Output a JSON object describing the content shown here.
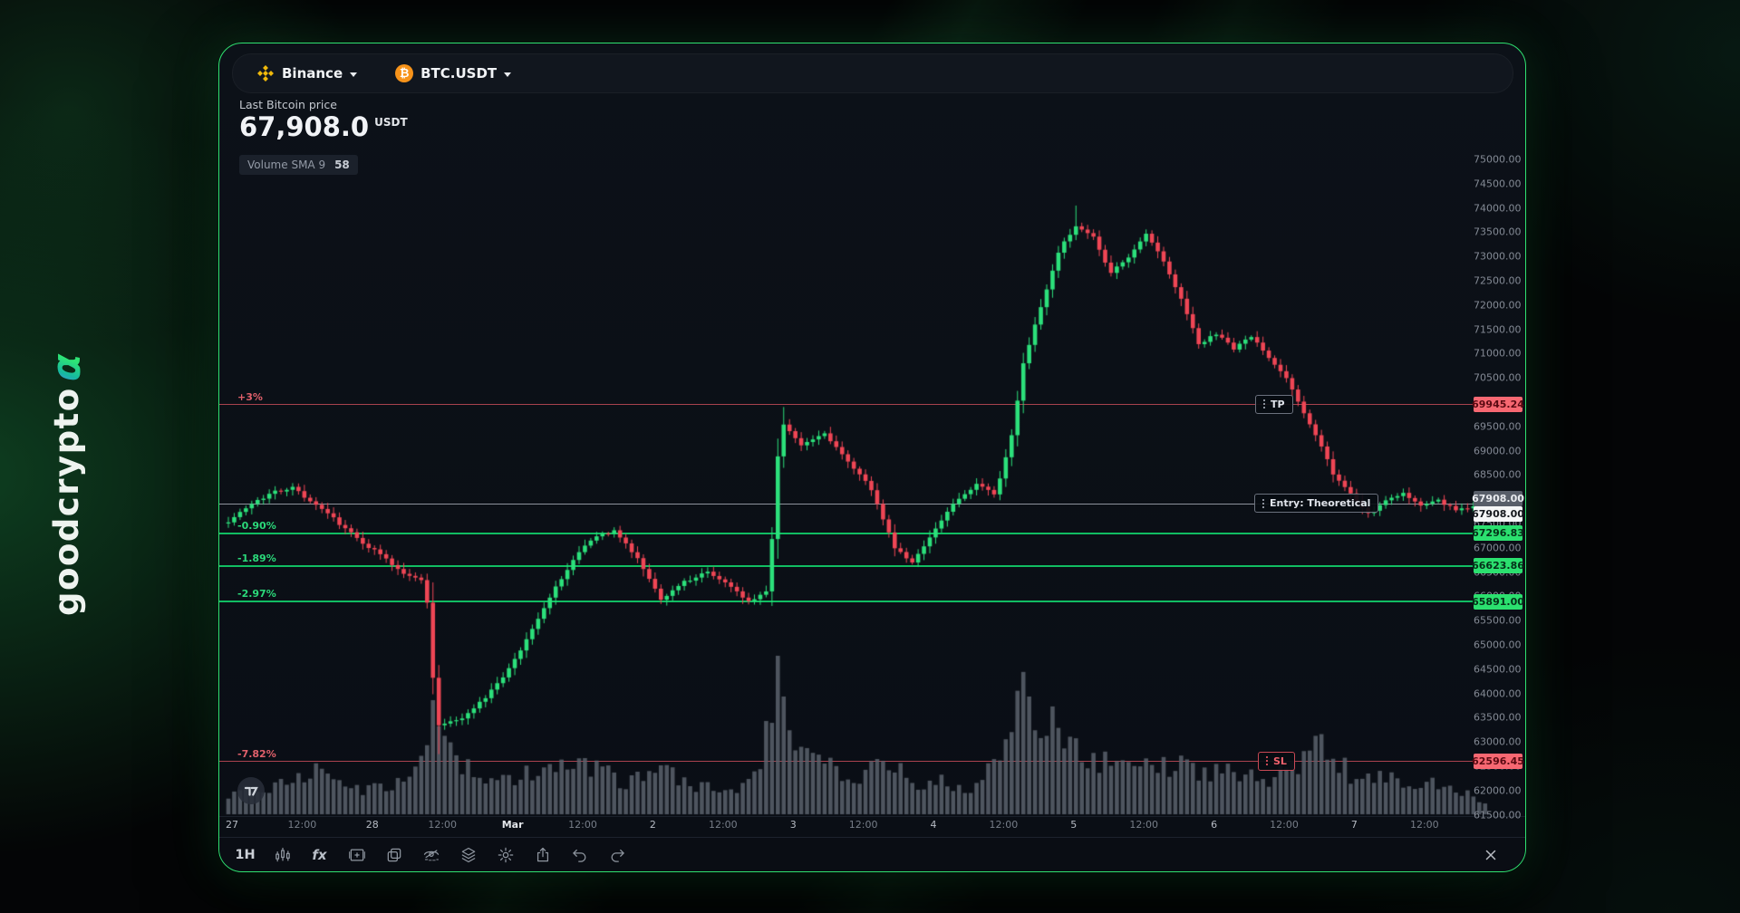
{
  "page": {
    "brand": "goodcrypto",
    "brand_alpha": "α"
  },
  "topbar": {
    "exchange": "Binance",
    "pair": "BTC.USDT",
    "btc_glyph": "₿"
  },
  "price_header": {
    "label": "Last Bitcoin price",
    "value": "67,908.0",
    "unit": "USDT"
  },
  "indicator_badge": {
    "label": "Volume SMA 9",
    "value": "58"
  },
  "last_price_badge": "67908.00",
  "levels": [
    {
      "id": "tp",
      "kind": "take-profit",
      "pct": "+3%",
      "price": 69945.24,
      "price_label": "69945.24",
      "flag": "TP",
      "color": "red"
    },
    {
      "id": "entry",
      "kind": "entry",
      "pct": "",
      "price": 67908.0,
      "price_label": "67908.00",
      "flag": "Entry: Theoretical",
      "color": "gray"
    },
    {
      "id": "l1",
      "kind": "ladder",
      "pct": "-0.90%",
      "price": 67296.83,
      "price_label": "67296.83",
      "flag": "",
      "color": "green"
    },
    {
      "id": "l2",
      "kind": "ladder",
      "pct": "-1.89%",
      "price": 66623.86,
      "price_label": "66623.86",
      "flag": "",
      "color": "green"
    },
    {
      "id": "l3",
      "kind": "ladder",
      "pct": "-2.97%",
      "price": 65891.0,
      "price_label": "65891.00",
      "flag": "",
      "color": "green"
    },
    {
      "id": "sl",
      "kind": "stop-loss",
      "pct": "-7.82%",
      "price": 62596.45,
      "price_label": "62596.45",
      "flag": "SL",
      "color": "red"
    }
  ],
  "price_axis": {
    "labels": [
      "75000.00",
      "74500.00",
      "74000.00",
      "73500.00",
      "73000.00",
      "72500.00",
      "72000.00",
      "71500.00",
      "71000.00",
      "70500.00",
      "70000.00",
      "69500.00",
      "69000.00",
      "68500.00",
      "68000.00",
      "67500.00",
      "67000.00",
      "66500.00",
      "66000.00",
      "65500.00",
      "65000.00",
      "64500.00",
      "64000.00",
      "63500.00",
      "63000.00",
      "62500.00",
      "62000.00",
      "61500.00"
    ]
  },
  "time_axis": [
    {
      "label": "27",
      "type": "day"
    },
    {
      "label": "12:00",
      "type": "hour"
    },
    {
      "label": "28",
      "type": "day"
    },
    {
      "label": "12:00",
      "type": "hour"
    },
    {
      "label": "Mar",
      "type": "month"
    },
    {
      "label": "12:00",
      "type": "hour"
    },
    {
      "label": "2",
      "type": "day"
    },
    {
      "label": "12:00",
      "type": "hour"
    },
    {
      "label": "3",
      "type": "day"
    },
    {
      "label": "12:00",
      "type": "hour"
    },
    {
      "label": "4",
      "type": "day"
    },
    {
      "label": "12:00",
      "type": "hour"
    },
    {
      "label": "5",
      "type": "day"
    },
    {
      "label": "12:00",
      "type": "hour"
    },
    {
      "label": "6",
      "type": "day"
    },
    {
      "label": "12:00",
      "type": "hour"
    },
    {
      "label": "7",
      "type": "day"
    },
    {
      "label": "12:00",
      "type": "hour"
    }
  ],
  "chart_data": {
    "type": "candlestick+volume",
    "symbol": "BTC.USDT",
    "exchange": "Binance",
    "interval": "1H",
    "last_price": 67908.0,
    "price_range": [
      61500,
      75000
    ],
    "time_range": [
      "Feb 27",
      "Mar 7"
    ],
    "num_candles": 216,
    "open_start": 67500,
    "colors": {
      "up": "#2ce07b",
      "down": "#ef4655",
      "volume": "#5b626c"
    },
    "price_keypoints": [
      [
        0,
        67550
      ],
      [
        4,
        67900
      ],
      [
        8,
        68150
      ],
      [
        11,
        68260
      ],
      [
        14,
        67950
      ],
      [
        18,
        67600
      ],
      [
        22,
        67200
      ],
      [
        26,
        66850
      ],
      [
        30,
        66450
      ],
      [
        33,
        66350
      ],
      [
        34,
        65900
      ],
      [
        35,
        64300
      ],
      [
        36,
        63350
      ],
      [
        40,
        63500
      ],
      [
        44,
        63900
      ],
      [
        48,
        64500
      ],
      [
        52,
        65300
      ],
      [
        56,
        66200
      ],
      [
        60,
        66900
      ],
      [
        63,
        67250
      ],
      [
        66,
        67350
      ],
      [
        70,
        66800
      ],
      [
        74,
        65950
      ],
      [
        78,
        66300
      ],
      [
        82,
        66500
      ],
      [
        86,
        66200
      ],
      [
        89,
        65900
      ],
      [
        92,
        66100
      ],
      [
        93,
        67200
      ],
      [
        94,
        68900
      ],
      [
        95,
        69550
      ],
      [
        98,
        69100
      ],
      [
        102,
        69350
      ],
      [
        106,
        68800
      ],
      [
        110,
        68200
      ],
      [
        114,
        67000
      ],
      [
        117,
        66700
      ],
      [
        120,
        67200
      ],
      [
        124,
        67900
      ],
      [
        128,
        68300
      ],
      [
        131,
        68100
      ],
      [
        132,
        68400
      ],
      [
        134,
        69300
      ],
      [
        136,
        70800
      ],
      [
        138,
        71600
      ],
      [
        140,
        72300
      ],
      [
        142,
        73100
      ],
      [
        145,
        73650
      ],
      [
        148,
        73400
      ],
      [
        151,
        72650
      ],
      [
        154,
        73000
      ],
      [
        157,
        73450
      ],
      [
        160,
        72900
      ],
      [
        163,
        72100
      ],
      [
        166,
        71200
      ],
      [
        169,
        71400
      ],
      [
        172,
        71100
      ],
      [
        175,
        71350
      ],
      [
        178,
        70900
      ],
      [
        181,
        70500
      ],
      [
        184,
        69800
      ],
      [
        187,
        69100
      ],
      [
        189,
        68500
      ],
      [
        192,
        68100
      ],
      [
        195,
        67700
      ],
      [
        198,
        67950
      ],
      [
        201,
        68150
      ],
      [
        204,
        67850
      ],
      [
        207,
        68000
      ],
      [
        210,
        67750
      ],
      [
        213,
        67850
      ],
      [
        215,
        67908
      ]
    ],
    "wick_overrides": [
      [
        36,
        62750
      ],
      [
        95,
        69900
      ],
      [
        145,
        74050
      ]
    ],
    "volume_keypoints": [
      [
        0,
        14
      ],
      [
        10,
        20
      ],
      [
        15,
        30
      ],
      [
        20,
        16
      ],
      [
        30,
        20
      ],
      [
        34,
        55
      ],
      [
        35,
        95
      ],
      [
        36,
        70
      ],
      [
        38,
        40
      ],
      [
        44,
        22
      ],
      [
        50,
        25
      ],
      [
        56,
        28
      ],
      [
        62,
        30
      ],
      [
        68,
        20
      ],
      [
        74,
        28
      ],
      [
        80,
        18
      ],
      [
        86,
        16
      ],
      [
        90,
        22
      ],
      [
        93,
        60
      ],
      [
        94,
        100
      ],
      [
        95,
        70
      ],
      [
        98,
        45
      ],
      [
        102,
        30
      ],
      [
        106,
        25
      ],
      [
        110,
        30
      ],
      [
        114,
        35
      ],
      [
        118,
        22
      ],
      [
        124,
        20
      ],
      [
        128,
        18
      ],
      [
        132,
        35
      ],
      [
        134,
        50
      ],
      [
        136,
        80
      ],
      [
        137,
        60
      ],
      [
        139,
        45
      ],
      [
        141,
        78
      ],
      [
        143,
        55
      ],
      [
        146,
        40
      ],
      [
        149,
        35
      ],
      [
        152,
        30
      ],
      [
        156,
        28
      ],
      [
        160,
        32
      ],
      [
        164,
        30
      ],
      [
        168,
        25
      ],
      [
        172,
        28
      ],
      [
        176,
        22
      ],
      [
        180,
        25
      ],
      [
        184,
        35
      ],
      [
        187,
        50
      ],
      [
        190,
        30
      ],
      [
        194,
        25
      ],
      [
        198,
        28
      ],
      [
        202,
        20
      ],
      [
        206,
        22
      ],
      [
        210,
        16
      ],
      [
        213,
        12
      ],
      [
        215,
        8
      ]
    ]
  },
  "toolbar_bottom": {
    "interval_label": "1H",
    "indicators_label": "fx",
    "icons": [
      "interval",
      "candle-style",
      "indicators",
      "frame",
      "compare",
      "visibility",
      "layers",
      "settings",
      "share",
      "undo",
      "redo",
      "close"
    ]
  },
  "watermark": {
    "icon": "tradingview"
  }
}
